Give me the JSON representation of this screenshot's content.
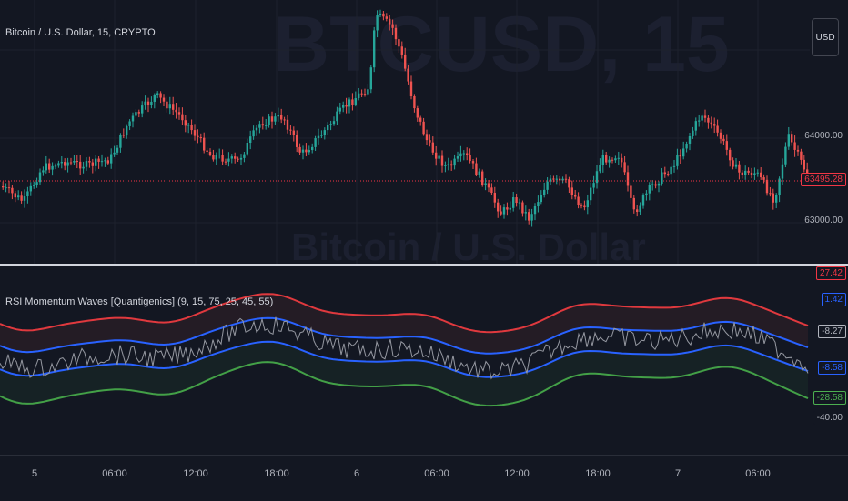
{
  "symbol": {
    "legend": "Bitcoin / U.S. Dollar, 15, CRYPTO",
    "watermark_ticker": "BTCUSD, 15",
    "watermark_name": "Bitcoin / U.S. Dollar"
  },
  "currency_button": "USD",
  "price_axis": {
    "labels": [
      "64000.00",
      "63000.00"
    ],
    "last_price": "63495.28",
    "last_price_color": "#f23645"
  },
  "indicator": {
    "legend": "RSI Momentum Waves [Quantigenics] (9, 15, 75, 25, 45, 55)",
    "badges": [
      {
        "value": "27.42",
        "color": "#f23645"
      },
      {
        "value": "1.42",
        "color": "#2962ff"
      },
      {
        "value": "-8.27",
        "color": "#b2b5be"
      },
      {
        "value": "-8.58",
        "color": "#2962ff"
      },
      {
        "value": "-28.58",
        "color": "#4caf50"
      },
      {
        "value": "-40.00",
        "color": "#b2b5be"
      }
    ]
  },
  "time_axis": [
    "5",
    "06:00",
    "12:00",
    "18:00",
    "6",
    "06:00",
    "12:00",
    "18:00",
    "7",
    "06:00"
  ],
  "colors": {
    "background": "#131722",
    "up": "#26a69a",
    "down": "#ef5350",
    "upper_band": "#e0393e",
    "mid_band": "#2962ff",
    "lower_band": "#43a047",
    "rsi_line": "#9598a1"
  }
}
